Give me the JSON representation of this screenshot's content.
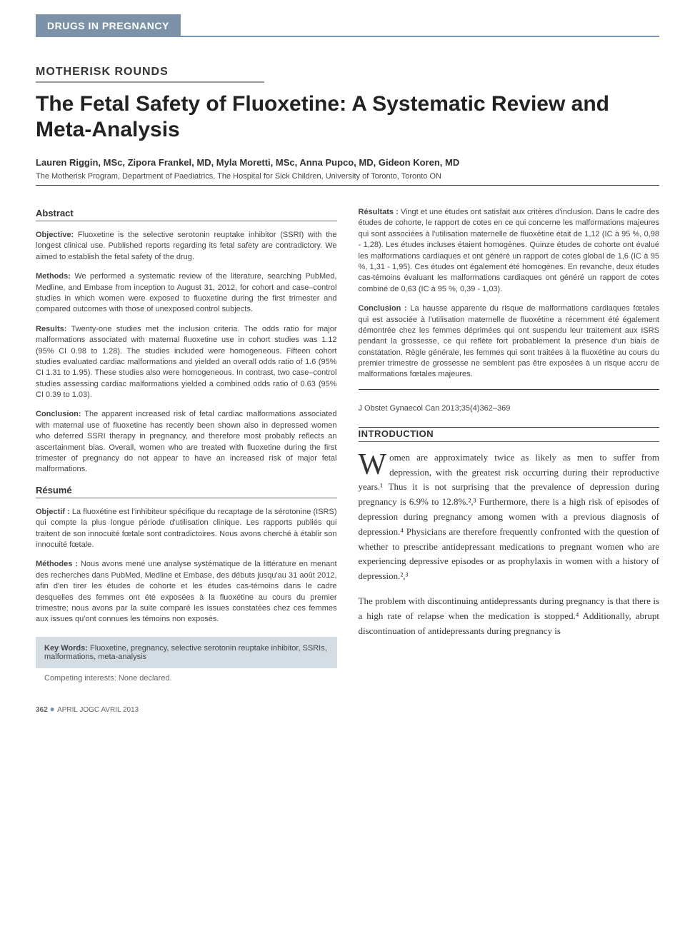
{
  "category_banner": "DRUGS IN PREGNANCY",
  "section_label": "MOTHERISK ROUNDS",
  "title": "The Fetal Safety of Fluoxetine: A Systematic Review and Meta-Analysis",
  "authors": "Lauren Riggin, MSc, Zipora Frankel, MD, Myla Moretti, MSc, Anna Pupco, MD, Gideon Koren, MD",
  "affiliation": "The Motherisk Program, Department of Paediatrics, The Hospital for Sick Children, University of Toronto, Toronto ON",
  "abstract_heading": "Abstract",
  "abstract": {
    "objective_label": "Objective:",
    "objective": " Fluoxetine is the selective serotonin reuptake inhibitor (SSRI) with the longest clinical use. Published reports regarding its fetal safety are contradictory. We aimed to establish the fetal safety of the drug.",
    "methods_label": "Methods:",
    "methods": " We performed a systematic review of the literature, searching PubMed, Medline, and Embase from inception to August 31, 2012, for cohort and case–control studies in which women were exposed to fluoxetine during the first trimester and compared outcomes with those of unexposed control subjects.",
    "results_label": "Results:",
    "results": " Twenty-one studies met the inclusion criteria. The odds ratio for major malformations associated with maternal fluoxetine use in cohort studies was 1.12 (95% CI 0.98 to 1.28). The studies included were homogeneous. Fifteen cohort studies evaluated cardiac malformations and yielded an overall odds ratio of 1.6 (95% CI 1.31 to 1.95). These studies also were homogeneous. In contrast, two case–control studies assessing cardiac malformations yielded a combined odds ratio of 0.63 (95% CI 0.39 to 1.03).",
    "conclusion_label": "Conclusion:",
    "conclusion": " The apparent increased risk of fetal cardiac malformations associated with maternal use of fluoxetine has recently been shown also in depressed women who deferred SSRI therapy in pregnancy, and therefore most probably reflects an ascertainment bias. Overall, women who are treated with fluoxetine during the first trimester of pregnancy do not appear to have an increased risk of major fetal malformations."
  },
  "resume_heading": "Résumé",
  "resume": {
    "objectif_label": "Objectif :",
    "objectif": " La fluoxétine est l'inhibiteur spécifique du recaptage de la sérotonine (ISRS) qui compte la plus longue période d'utilisation clinique. Les rapports publiés qui traitent de son innocuité fœtale sont contradictoires. Nous avons cherché à établir son innocuité fœtale.",
    "methodes_label": "Méthodes :",
    "methodes": " Nous avons mené une analyse systématique de la littérature en menant des recherches dans PubMed, Medline et Embase, des débuts jusqu'au 31 août 2012, afin d'en tirer les études de cohorte et les études cas-témoins dans le cadre desquelles des femmes ont été exposées à la fluoxétine au cours du premier trimestre; nous avons par la suite comparé les issues constatées chez ces femmes aux issues qu'ont connues les témoins non exposés.",
    "resultats_label": "Résultats :",
    "resultats": " Vingt et une études ont satisfait aux critères d'inclusion. Dans le cadre des études de cohorte, le rapport de cotes en ce qui concerne les malformations majeures qui sont associées à l'utilisation maternelle de fluoxétine était de 1,12 (IC à 95 %, 0,98 - 1,28). Les études incluses étaient homogènes. Quinze études de cohorte ont évalué les malformations cardiaques et ont généré un rapport de cotes global de 1,6 (IC à 95 %, 1,31 - 1,95). Ces études ont également été homogènes. En revanche, deux études cas-témoins évaluant les malformations cardiaques ont généré un rapport de cotes combiné de 0,63 (IC à 95 %, 0,39 - 1,03).",
    "conclusion_label": "Conclusion :",
    "conclusion": " La hausse apparente du risque de malformations cardiaques fœtales qui est associée à l'utilisation maternelle de fluoxétine a récemment été également démontrée chez les femmes déprimées qui ont suspendu leur traitement aux ISRS pendant la grossesse, ce qui reflète fort probablement la présence d'un biais de constatation. Règle générale, les femmes qui sont traitées à la fluoxétine au cours du premier trimestre de grossesse ne semblent pas être exposées à un risque accru de malformations fœtales majeures."
  },
  "keywords_label": "Key Words:",
  "keywords": " Fluoxetine, pregnancy, selective serotonin reuptake inhibitor, SSRIs, malformations, meta-analysis",
  "competing": "Competing interests: None declared.",
  "citation": "J Obstet Gynaecol Can 2013;35(4)362–369",
  "intro_heading": "INTRODUCTION",
  "intro_dropcap": "W",
  "intro_p1": "omen are approximately twice as likely as men to suffer from depression, with the greatest risk occurring during their reproductive years.¹ Thus it is not surprising that the prevalence of depression during pregnancy is 6.9% to 12.8%.²,³ Furthermore, there is a high risk of episodes of depression during pregnancy among women with a previous diagnosis of depression.⁴ Physicians are therefore frequently confronted with the question of whether to prescribe antidepressant medications to pregnant women who are experiencing depressive episodes or as prophylaxis in women with a history of depression.²,³",
  "intro_p2": "The problem with discontinuing antidepressants during pregnancy is that there is a high rate of relapse when the medication is stopped.⁴ Additionally, abrupt discontinuation of antidepressants during pregnancy is",
  "footer": {
    "page": "362",
    "text": "APRIL JOGC AVRIL 2013"
  },
  "colors": {
    "banner_bg": "#7b92a8",
    "banner_text": "#ffffff",
    "keywords_bg": "#d4dce4",
    "text_primary": "#333333",
    "text_secondary": "#444444"
  }
}
